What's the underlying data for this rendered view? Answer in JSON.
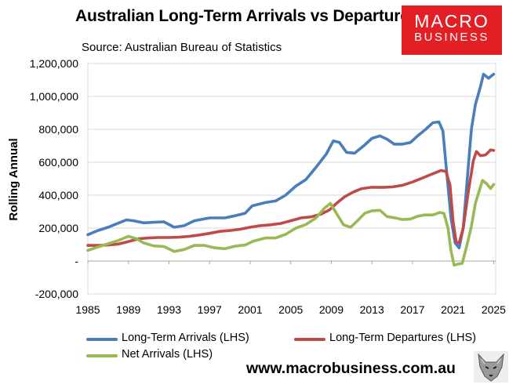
{
  "header": {
    "title": "Australian Long-Term Arrivals vs Departures",
    "source": "Source: Australian Bureau of Statistics"
  },
  "logo": {
    "line1": "MACRO",
    "line2": "BUSINESS"
  },
  "footer": {
    "url": "www.macrobusiness.com.au"
  },
  "colors": {
    "arrivals": "#4a7ebb",
    "departures": "#be4b48",
    "net": "#98b954",
    "brand": "#e31f26"
  },
  "chart_data": {
    "type": "line",
    "title": "Australian Long-Term Arrivals vs Departures",
    "xlabel": "",
    "ylabel": "Rolling Annual",
    "xlim": [
      1985,
      2025.2
    ],
    "ylim": [
      -200000,
      1200000
    ],
    "x_ticks": [
      1985,
      1989,
      1993,
      1997,
      2001,
      2005,
      2009,
      2013,
      2017,
      2021,
      2025
    ],
    "y_ticks": [
      -200000,
      0,
      200000,
      400000,
      600000,
      800000,
      1000000,
      1200000
    ],
    "y_tick_labels": [
      "-200,000",
      "-",
      "200,000",
      "400,000",
      "600,000",
      "800,000",
      "1,000,000",
      "1,200,000"
    ],
    "series": [
      {
        "name": "Long-Term Arrivals (LHS)",
        "color": "#4a7ebb",
        "x": [
          1985,
          1986,
          1987,
          1988,
          1988.8,
          1989.5,
          1990.5,
          1991.5,
          1992.5,
          1993.5,
          1994.5,
          1995.5,
          1997,
          1998.5,
          1999.5,
          2000.5,
          2001.2,
          2002.5,
          2003.5,
          2004.5,
          2005.5,
          2006.5,
          2007.5,
          2008.5,
          2009.2,
          2009.8,
          2010.5,
          2011.3,
          2012.2,
          2013,
          2013.8,
          2014.5,
          2015.2,
          2016,
          2016.8,
          2017.5,
          2018.3,
          2019,
          2019.6,
          2020,
          2020.4,
          2020.8,
          2021.2,
          2021.6,
          2022,
          2022.4,
          2022.8,
          2023.2,
          2023.7,
          2024,
          2024.5,
          2025
        ],
        "values": [
          160000,
          185000,
          205000,
          230000,
          250000,
          245000,
          232000,
          235000,
          238000,
          205000,
          215000,
          245000,
          262000,
          262000,
          275000,
          290000,
          335000,
          355000,
          365000,
          400000,
          455000,
          495000,
          570000,
          650000,
          730000,
          720000,
          660000,
          655000,
          700000,
          745000,
          760000,
          740000,
          710000,
          710000,
          720000,
          760000,
          800000,
          840000,
          845000,
          790000,
          520000,
          260000,
          110000,
          80000,
          200000,
          500000,
          800000,
          950000,
          1060000,
          1135000,
          1110000,
          1135000
        ]
      },
      {
        "name": "Long-Term Departures (LHS)",
        "color": "#be4b48",
        "x": [
          1985,
          1986,
          1987,
          1988,
          1989,
          1990,
          1991,
          1992,
          1993,
          1994,
          1995,
          1996,
          1997,
          1998,
          1999,
          2000,
          2001,
          2002,
          2003,
          2004,
          2005,
          2006,
          2007,
          2008,
          2008.8,
          2009.5,
          2010.3,
          2011.2,
          2012,
          2013,
          2014,
          2015,
          2016,
          2017,
          2018,
          2019,
          2019.8,
          2020.3,
          2020.7,
          2021,
          2021.3,
          2021.6,
          2022,
          2022.5,
          2023,
          2023.3,
          2023.7,
          2024.2,
          2024.7,
          2025
        ],
        "values": [
          95000,
          95000,
          97000,
          103000,
          118000,
          135000,
          140000,
          143000,
          143000,
          145000,
          150000,
          158000,
          168000,
          180000,
          185000,
          193000,
          205000,
          215000,
          220000,
          228000,
          245000,
          262000,
          268000,
          285000,
          310000,
          350000,
          390000,
          420000,
          440000,
          448000,
          447000,
          450000,
          460000,
          480000,
          505000,
          530000,
          550000,
          545000,
          460000,
          240000,
          115000,
          110000,
          200000,
          420000,
          610000,
          665000,
          640000,
          645000,
          675000,
          672000
        ]
      },
      {
        "name": "Net Arrivals (LHS)",
        "color": "#98b954",
        "x": [
          1985,
          1986,
          1987,
          1988,
          1989,
          1989.8,
          1990.5,
          1991.5,
          1992.5,
          1993.5,
          1994.5,
          1995.5,
          1996.5,
          1997.5,
          1998.5,
          1999.5,
          2000.5,
          2001.3,
          2002.5,
          2003.5,
          2004.5,
          2005.5,
          2006.5,
          2007.5,
          2008.3,
          2008.9,
          2009.5,
          2010.2,
          2010.9,
          2011.5,
          2012.3,
          2013,
          2013.8,
          2014.5,
          2015.3,
          2016,
          2016.8,
          2017.5,
          2018.2,
          2019,
          2019.7,
          2020.1,
          2020.5,
          2020.8,
          2021.1,
          2021.5,
          2021.9,
          2022.3,
          2022.8,
          2023.2,
          2023.6,
          2023.9,
          2024.3,
          2024.7,
          2025
        ],
        "values": [
          65000,
          85000,
          105000,
          125000,
          150000,
          135000,
          110000,
          92000,
          88000,
          58000,
          70000,
          95000,
          95000,
          80000,
          75000,
          90000,
          97000,
          120000,
          140000,
          140000,
          162000,
          200000,
          222000,
          262000,
          320000,
          350000,
          290000,
          220000,
          205000,
          240000,
          290000,
          305000,
          308000,
          270000,
          262000,
          252000,
          255000,
          272000,
          280000,
          280000,
          295000,
          290000,
          200000,
          60000,
          -25000,
          -18000,
          -15000,
          80000,
          210000,
          350000,
          430000,
          490000,
          470000,
          440000,
          465000
        ]
      }
    ]
  }
}
